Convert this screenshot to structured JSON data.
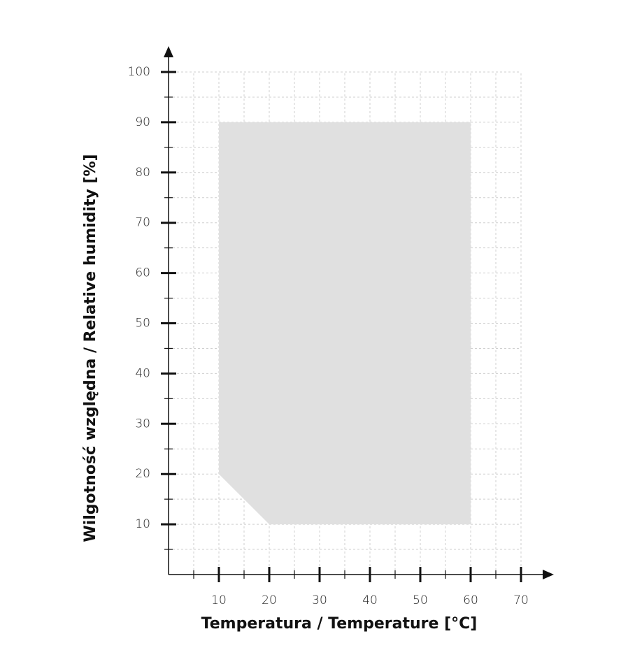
{
  "chart_data": {
    "type": "area",
    "x_label": "Temperatura / Temperature [°C]",
    "y_label": "Wilgotność względna / Relative humidity [%]",
    "x": [
      10,
      10,
      60,
      60,
      20
    ],
    "values": [
      20,
      90,
      90,
      10,
      10
    ],
    "color": "#e0e0e0",
    "xlim": [
      0,
      70
    ],
    "ylim": [
      0,
      100
    ],
    "xticks": [
      10,
      20,
      30,
      40,
      50,
      60,
      70
    ],
    "yticks": [
      10,
      20,
      30,
      40,
      50,
      60,
      70,
      80,
      90,
      100
    ],
    "xminorticks": [
      5,
      15,
      25,
      35,
      45,
      55,
      65
    ],
    "yminorticks": [
      5,
      15,
      25,
      35,
      45,
      55,
      65,
      75,
      85,
      95
    ],
    "grid": true
  }
}
